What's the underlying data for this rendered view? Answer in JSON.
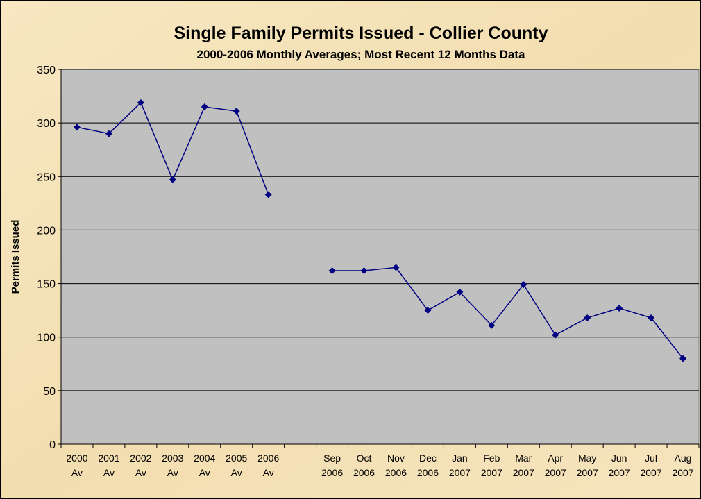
{
  "chart_data": {
    "type": "line",
    "title": "Single Family Permits Issued - Collier County",
    "subtitle": "2000-2006 Monthly Averages; Most Recent 12 Months Data",
    "y_label": "Permits Issued",
    "categories": [
      [
        "2000",
        "Av"
      ],
      [
        "2001",
        "Av"
      ],
      [
        "2002",
        "Av"
      ],
      [
        "2003",
        "Av"
      ],
      [
        "2004",
        "Av"
      ],
      [
        "2005",
        "Av"
      ],
      [
        "2006",
        "Av"
      ],
      null,
      [
        "Sep",
        "2006"
      ],
      [
        "Oct",
        "2006"
      ],
      [
        "Nov",
        "2006"
      ],
      [
        "Dec",
        "2006"
      ],
      [
        "Jan",
        "2007"
      ],
      [
        "Feb",
        "2007"
      ],
      [
        "Mar",
        "2007"
      ],
      [
        "Apr",
        "2007"
      ],
      [
        "May",
        "2007"
      ],
      [
        "Jun",
        "2007"
      ],
      [
        "Jul",
        "2007"
      ],
      [
        "Aug",
        "2007"
      ]
    ],
    "series": [
      {
        "name": "Permits Issued",
        "color": "#000080",
        "values": [
          296,
          290,
          319,
          247,
          315,
          311,
          233,
          null,
          162,
          162,
          165,
          125,
          142,
          111,
          149,
          102,
          118,
          127,
          118,
          80
        ]
      }
    ],
    "ylim": [
      0,
      350
    ],
    "yticks": [
      0,
      50,
      100,
      150,
      200,
      250,
      300,
      350
    ],
    "grid": true
  }
}
